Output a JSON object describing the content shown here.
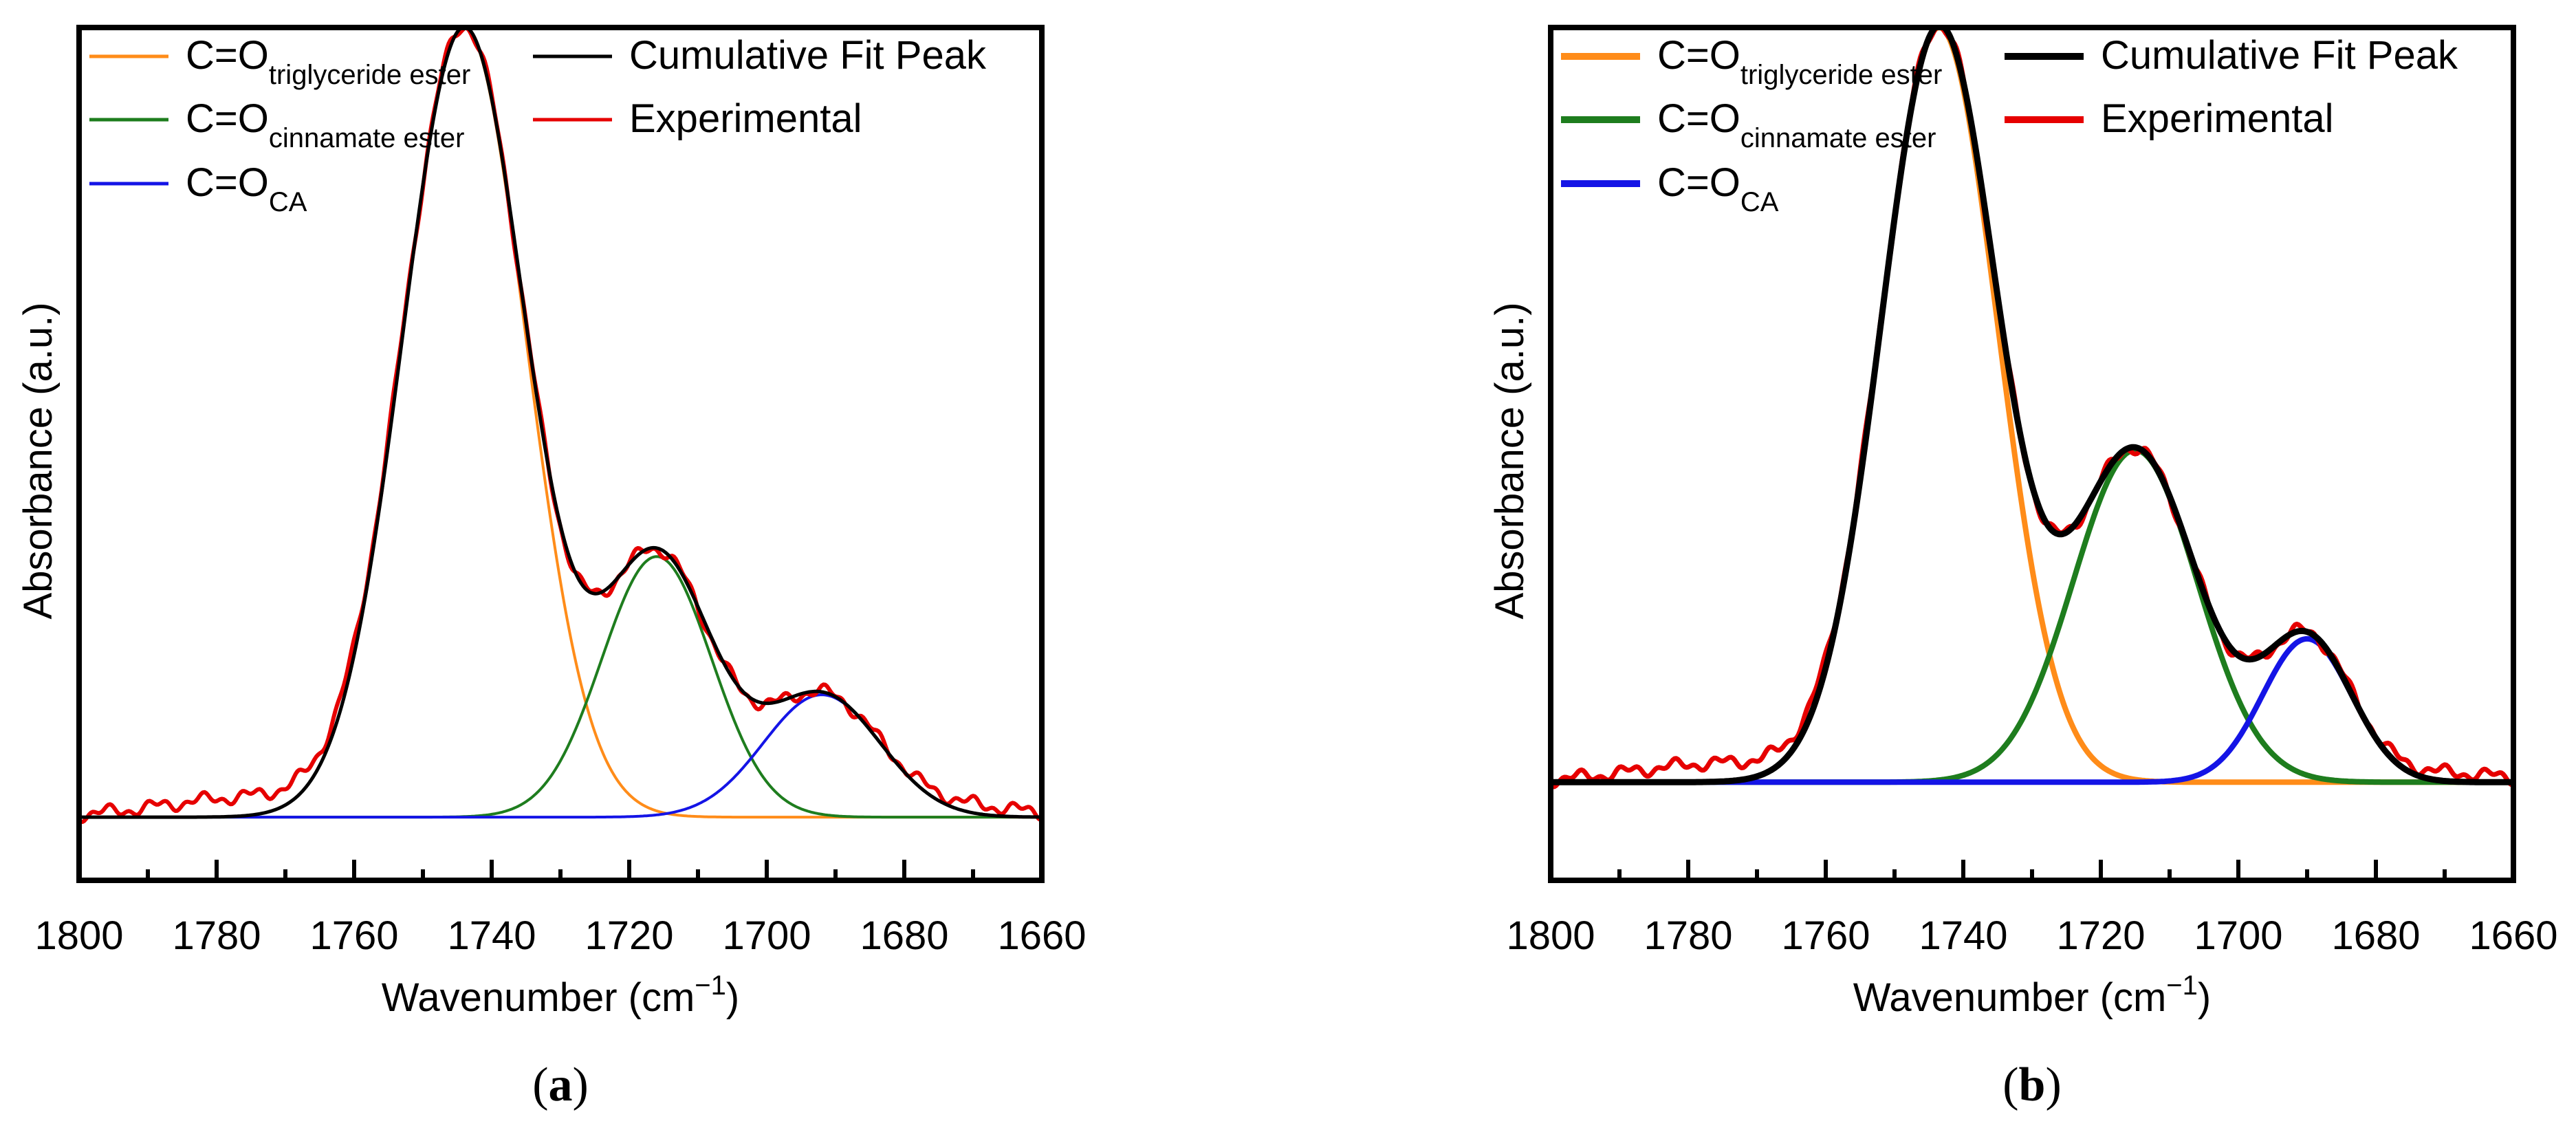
{
  "colors": {
    "triglyceride": "#ff8c19",
    "cinnamate": "#1e7d1e",
    "ca": "#1414e6",
    "fit": "#000000",
    "experimental": "#e60000"
  },
  "chart_data": [
    {
      "panel_label": "a",
      "type": "line",
      "title": "",
      "xlabel": "Wavenumber (cm",
      "xlabel_sup": "−1",
      "xlabel_close": ")",
      "ylabel": "Absorbance (a.u.)",
      "xlim": [
        1800,
        1660
      ],
      "ylim": [
        -0.08,
        1.0
      ],
      "x_ticks": [
        1800,
        1780,
        1760,
        1740,
        1720,
        1700,
        1680,
        1660
      ],
      "x_tick_labels": [
        "1800",
        "1780",
        "1760",
        "1740",
        "1720",
        "1700",
        "1680",
        "1660"
      ],
      "y_ticks_shown": false,
      "legend": [
        {
          "series": "triglyceride",
          "main": "C=O",
          "sub": "triglyceride ester"
        },
        {
          "series": "cinnamate",
          "main": "C=O",
          "sub": "cinnamate ester"
        },
        {
          "series": "ca",
          "main": "C=O",
          "sub": "CA"
        },
        {
          "series": "fit",
          "main": "Cumulative Fit Peak",
          "sub": ""
        },
        {
          "series": "experimental",
          "main": "Experimental",
          "sub": ""
        }
      ],
      "series": [
        {
          "name": "C=O triglyceride ester",
          "key": "triglyceride",
          "model": "gaussian",
          "center": 1744,
          "amplitude": 1.0,
          "sigma": 9.0
        },
        {
          "name": "C=O cinnamate ester",
          "key": "cinnamate",
          "model": "gaussian",
          "center": 1716,
          "amplitude": 0.33,
          "sigma": 8.0
        },
        {
          "name": "C=O CA",
          "key": "ca",
          "model": "gaussian",
          "center": 1692,
          "amplitude": 0.155,
          "sigma": 8.5
        }
      ]
    },
    {
      "panel_label": "b",
      "type": "line",
      "title": "",
      "xlabel": "Wavenumber (cm",
      "xlabel_sup": "−1",
      "xlabel_close": ")",
      "ylabel": "Absorbance (a.u.)",
      "xlim": [
        1800,
        1660
      ],
      "ylim": [
        -0.13,
        1.0
      ],
      "x_ticks": [
        1800,
        1780,
        1760,
        1740,
        1720,
        1700,
        1680,
        1660
      ],
      "x_tick_labels": [
        "1800",
        "1780",
        "1760",
        "1740",
        "1720",
        "1700",
        "1680",
        "1660"
      ],
      "y_ticks_shown": false,
      "legend": [
        {
          "series": "triglyceride",
          "main": "C=O",
          "sub": "triglyceride ester"
        },
        {
          "series": "cinnamate",
          "main": "C=O",
          "sub": "cinnamate ester"
        },
        {
          "series": "ca",
          "main": "C=O",
          "sub": "CA"
        },
        {
          "series": "fit",
          "main": "Cumulative Fit Peak",
          "sub": ""
        },
        {
          "series": "experimental",
          "main": "Experimental",
          "sub": ""
        }
      ],
      "series": [
        {
          "name": "C=O triglyceride ester",
          "key": "triglyceride",
          "model": "gaussian",
          "center": 1743.5,
          "amplitude": 1.0,
          "sigma": 8.5
        },
        {
          "name": "C=O cinnamate ester",
          "key": "cinnamate",
          "model": "gaussian",
          "center": 1715,
          "amplitude": 0.44,
          "sigma": 9.0
        },
        {
          "name": "C=O CA",
          "key": "ca",
          "model": "gaussian",
          "center": 1690,
          "amplitude": 0.19,
          "sigma": 6.5
        }
      ]
    }
  ]
}
